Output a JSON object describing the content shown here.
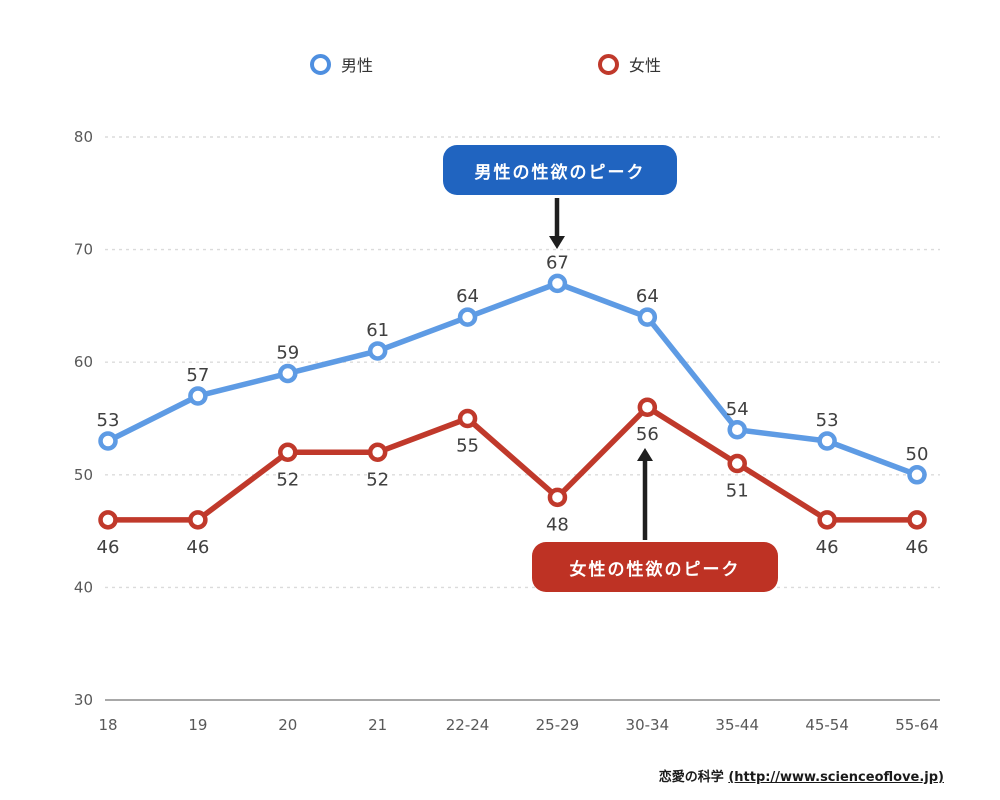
{
  "legend": {
    "items": [
      {
        "label": "男性",
        "color": "#4E8FE0"
      },
      {
        "label": "女性",
        "color": "#C0392B"
      }
    ]
  },
  "chart_data": {
    "type": "line",
    "title": "",
    "xlabel": "",
    "ylabel": "",
    "categories": [
      "18",
      "19",
      "20",
      "21",
      "22-24",
      "25-29",
      "30-34",
      "35-44",
      "45-54",
      "55-64"
    ],
    "series": [
      {
        "name": "男性",
        "color": "#5E9BE4",
        "values": [
          53,
          57,
          59,
          61,
          64,
          67,
          64,
          54,
          53,
          50
        ],
        "data_label_position": "above"
      },
      {
        "name": "女性",
        "color": "#C0392B",
        "values": [
          46,
          46,
          52,
          52,
          55,
          48,
          56,
          51,
          46,
          46
        ],
        "data_label_position": "below"
      }
    ],
    "ylim": [
      30,
      80
    ],
    "yticks": [
      30,
      40,
      50,
      60,
      70,
      80
    ],
    "grid": "horizontal-dashed",
    "legend_position": "top",
    "marker": "open-circle"
  },
  "annotations": [
    {
      "text": "男性の性欲のピーク",
      "box_color": "#2064C0",
      "text_color": "#FFFFFF",
      "target_series": "男性",
      "target_category": "25-29",
      "target_value": 67,
      "arrow_direction": "down"
    },
    {
      "text": "女性の性欲のピーク",
      "box_color": "#BE3224",
      "text_color": "#FFFFFF",
      "target_series": "女性",
      "target_category": "30-34",
      "target_value": 56,
      "arrow_direction": "up"
    }
  ],
  "source": {
    "site": "恋愛の科学",
    "url_display": "(http://www.scienceoflove.jp)"
  },
  "colors": {
    "grid": "#DBDBDB",
    "axis": "#A8A8A8",
    "tick_text": "#595959",
    "data_label_text": "#404040",
    "arrow": "#1F1F1F"
  }
}
